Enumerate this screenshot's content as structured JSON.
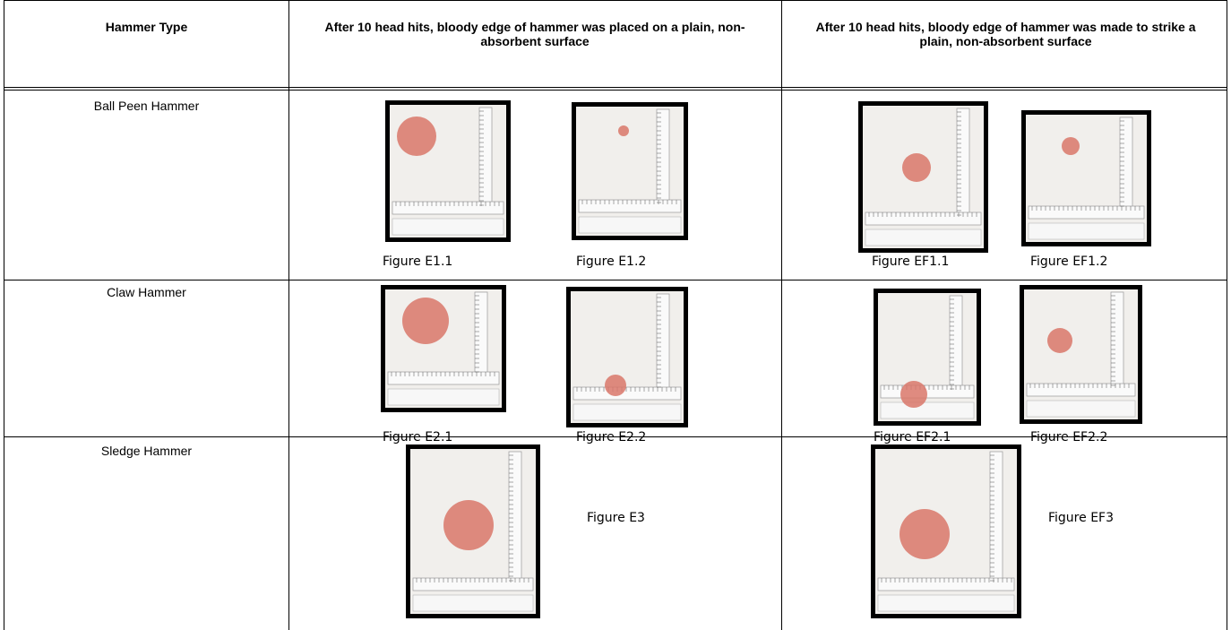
{
  "header": {
    "columns": [
      "Hammer Type",
      "After 10 head hits, bloody edge of hammer was placed on a plain, non-absorbent surface",
      "After 10 head hits, bloody edge of hammer was made to strike a plain, non-absorbent surface"
    ]
  },
  "rows": [
    {
      "hammer_type": "Ball Peen Hammer",
      "figures": [
        "Figure E1.1",
        "Figure E1.2",
        "Figure EF1.1",
        "Figure EF1.2"
      ]
    },
    {
      "hammer_type": "Claw Hammer",
      "figures": [
        "Figure E2.1",
        "Figure E2.2",
        "Figure EF2.1",
        "Figure EF2.2"
      ]
    },
    {
      "hammer_type": "Sledge Hammer",
      "figures": [
        "Figure E3",
        "Figure EF3"
      ]
    }
  ]
}
